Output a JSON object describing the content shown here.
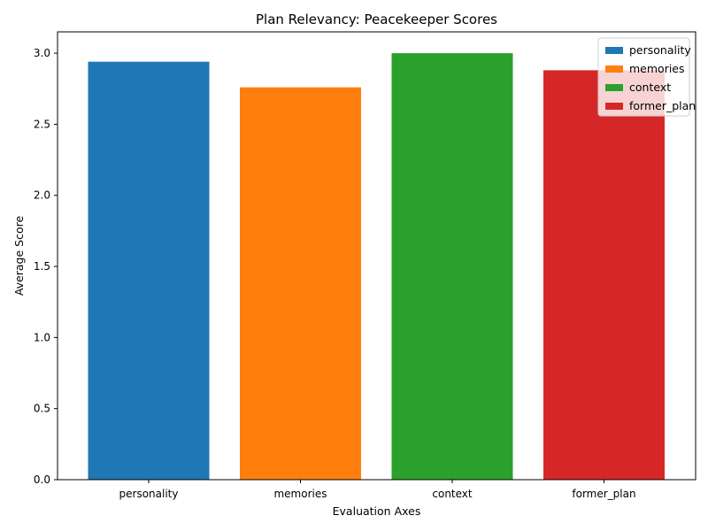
{
  "chart_data": {
    "type": "bar",
    "title": "Plan Relevancy: Peacekeeper Scores",
    "xlabel": "Evaluation Axes",
    "ylabel": "Average Score",
    "categories": [
      "personality",
      "memories",
      "context",
      "former_plan"
    ],
    "values": [
      2.94,
      2.76,
      3.0,
      2.88
    ],
    "colors": [
      "#1f77b4",
      "#ff7f0e",
      "#2ca02c",
      "#d62728"
    ],
    "ylim": [
      0,
      3.15
    ],
    "yticks": [
      "0.0",
      "0.5",
      "1.0",
      "1.5",
      "2.0",
      "2.5",
      "3.0"
    ],
    "grid": false,
    "legend": {
      "position": "top-right",
      "entries": [
        "personality",
        "memories",
        "context",
        "former_plan"
      ]
    }
  }
}
